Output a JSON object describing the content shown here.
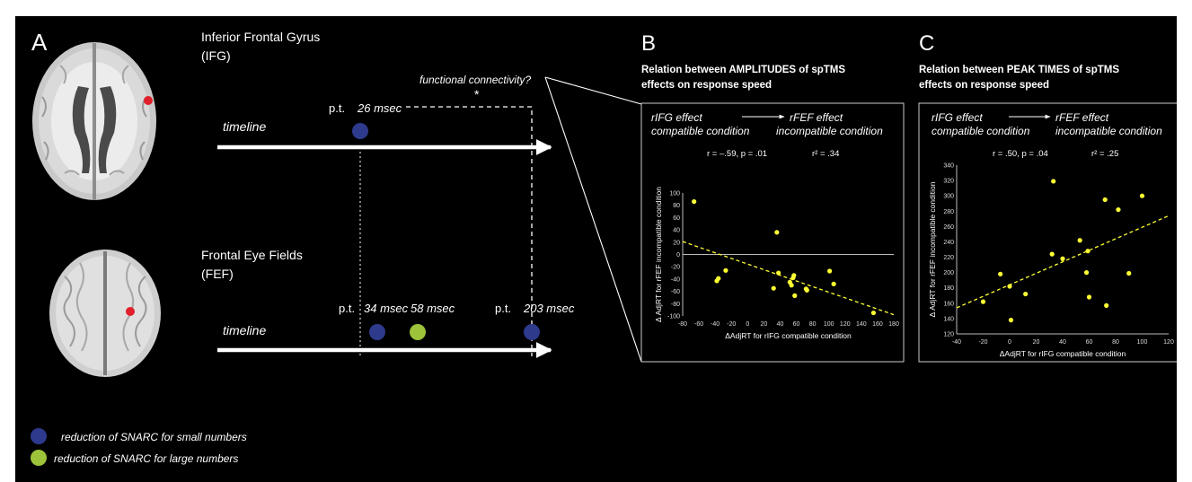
{
  "panels": {
    "A": {
      "letter": "A",
      "ifg_title_line1": "Inferior Frontal Gyrus",
      "ifg_title_line2": "(IFG)",
      "fef_title_line1": "Frontal Eye Fields",
      "fef_title_line2": "(FEF)",
      "timeline_label": "timeline",
      "functional_connectivity": "functional connectivity?",
      "significance": "*",
      "pt_prefix": "p.t.",
      "ifg_peak_time": "26 msec",
      "fef_peak_times": [
        "34 msec",
        "58 msec",
        "203 msec"
      ],
      "legend": [
        {
          "label": "reduction of SNARC for small numbers",
          "color": "#2e3a8c"
        },
        {
          "label": "reduction of SNARC for large numbers",
          "color": "#9cc33a"
        }
      ]
    },
    "B": {
      "letter": "B",
      "heading_line1": "Relation between AMPLITUDES of spTMS",
      "heading_line2": "effects on response speed",
      "left_effect_line1": "rIFG effect",
      "left_effect_line2": "compatible condition",
      "right_effect_line1": "rFEF effect",
      "right_effect_line2": "incompatible condition",
      "stat_r": "r = –.59, p = .01",
      "stat_r2": "r² = .34"
    },
    "C": {
      "letter": "C",
      "heading_line1": "Relation between  PEAK TIMES of spTMS",
      "heading_line2": "effects on response speed",
      "left_effect_line1": "rIFG effect",
      "left_effect_line2": "compatible condition",
      "right_effect_line1": "rFEF effect",
      "right_effect_line2": "incompatible condition",
      "stat_r": "r = .50, p = .04",
      "stat_r2": "r² = .25"
    }
  },
  "colors": {
    "background": "#000000",
    "small_numbers": "#2e3a8c",
    "large_numbers": "#9cc33a",
    "data_points": "#ffff33",
    "stimulation_site": "#e0202a"
  },
  "chart_data": [
    {
      "type": "scatter",
      "xlabel": "ΔAdjRT for rIFG compatible condition",
      "ylabel": "Δ AdjRT for rFEF incompatible condition",
      "xlim": [
        -80,
        180
      ],
      "ylim": [
        -100,
        100
      ],
      "xticks": [
        -80,
        -60,
        -40,
        -20,
        0,
        20,
        40,
        60,
        80,
        100,
        120,
        140,
        160,
        180
      ],
      "yticks": [
        -100,
        -80,
        -60,
        -40,
        -20,
        0,
        20,
        40,
        60,
        80,
        100
      ],
      "points": [
        {
          "x": -66,
          "y": 86
        },
        {
          "x": -38,
          "y": -43
        },
        {
          "x": -36,
          "y": -39
        },
        {
          "x": -27,
          "y": -26
        },
        {
          "x": 32,
          "y": -55
        },
        {
          "x": 36,
          "y": 36
        },
        {
          "x": 38,
          "y": -30
        },
        {
          "x": 52,
          "y": -45
        },
        {
          "x": 54,
          "y": -50
        },
        {
          "x": 56,
          "y": -38
        },
        {
          "x": 57,
          "y": -34
        },
        {
          "x": 58,
          "y": -67
        },
        {
          "x": 72,
          "y": -56
        },
        {
          "x": 73,
          "y": -58
        },
        {
          "x": 101,
          "y": -27
        },
        {
          "x": 106,
          "y": -48
        },
        {
          "x": 155,
          "y": -95
        }
      ],
      "trendline": {
        "x": [
          -80,
          180
        ],
        "y": [
          21,
          -98
        ]
      },
      "grid": false
    },
    {
      "type": "scatter",
      "xlabel": "ΔAdjRT for rIFG compatible condition",
      "ylabel": "Δ AdjRT for rFEF incompatible condition",
      "xlim": [
        -40,
        120
      ],
      "ylim": [
        120,
        340
      ],
      "xticks": [
        -40,
        -20,
        0,
        20,
        40,
        60,
        80,
        100,
        120
      ],
      "yticks": [
        120,
        140,
        160,
        180,
        200,
        220,
        240,
        260,
        280,
        300,
        320,
        340
      ],
      "points": [
        {
          "x": -20,
          "y": 162
        },
        {
          "x": -7,
          "y": 198
        },
        {
          "x": 0,
          "y": 182
        },
        {
          "x": 1,
          "y": 138
        },
        {
          "x": 12,
          "y": 172
        },
        {
          "x": 33,
          "y": 319
        },
        {
          "x": 32,
          "y": 224
        },
        {
          "x": 40,
          "y": 218
        },
        {
          "x": 53,
          "y": 242
        },
        {
          "x": 58,
          "y": 200
        },
        {
          "x": 59,
          "y": 228
        },
        {
          "x": 60,
          "y": 168
        },
        {
          "x": 72,
          "y": 295
        },
        {
          "x": 73,
          "y": 157
        },
        {
          "x": 82,
          "y": 282
        },
        {
          "x": 90,
          "y": 199
        },
        {
          "x": 100,
          "y": 300
        }
      ],
      "trendline": {
        "x": [
          -40,
          120
        ],
        "y": [
          154,
          274
        ]
      },
      "grid": false
    }
  ]
}
